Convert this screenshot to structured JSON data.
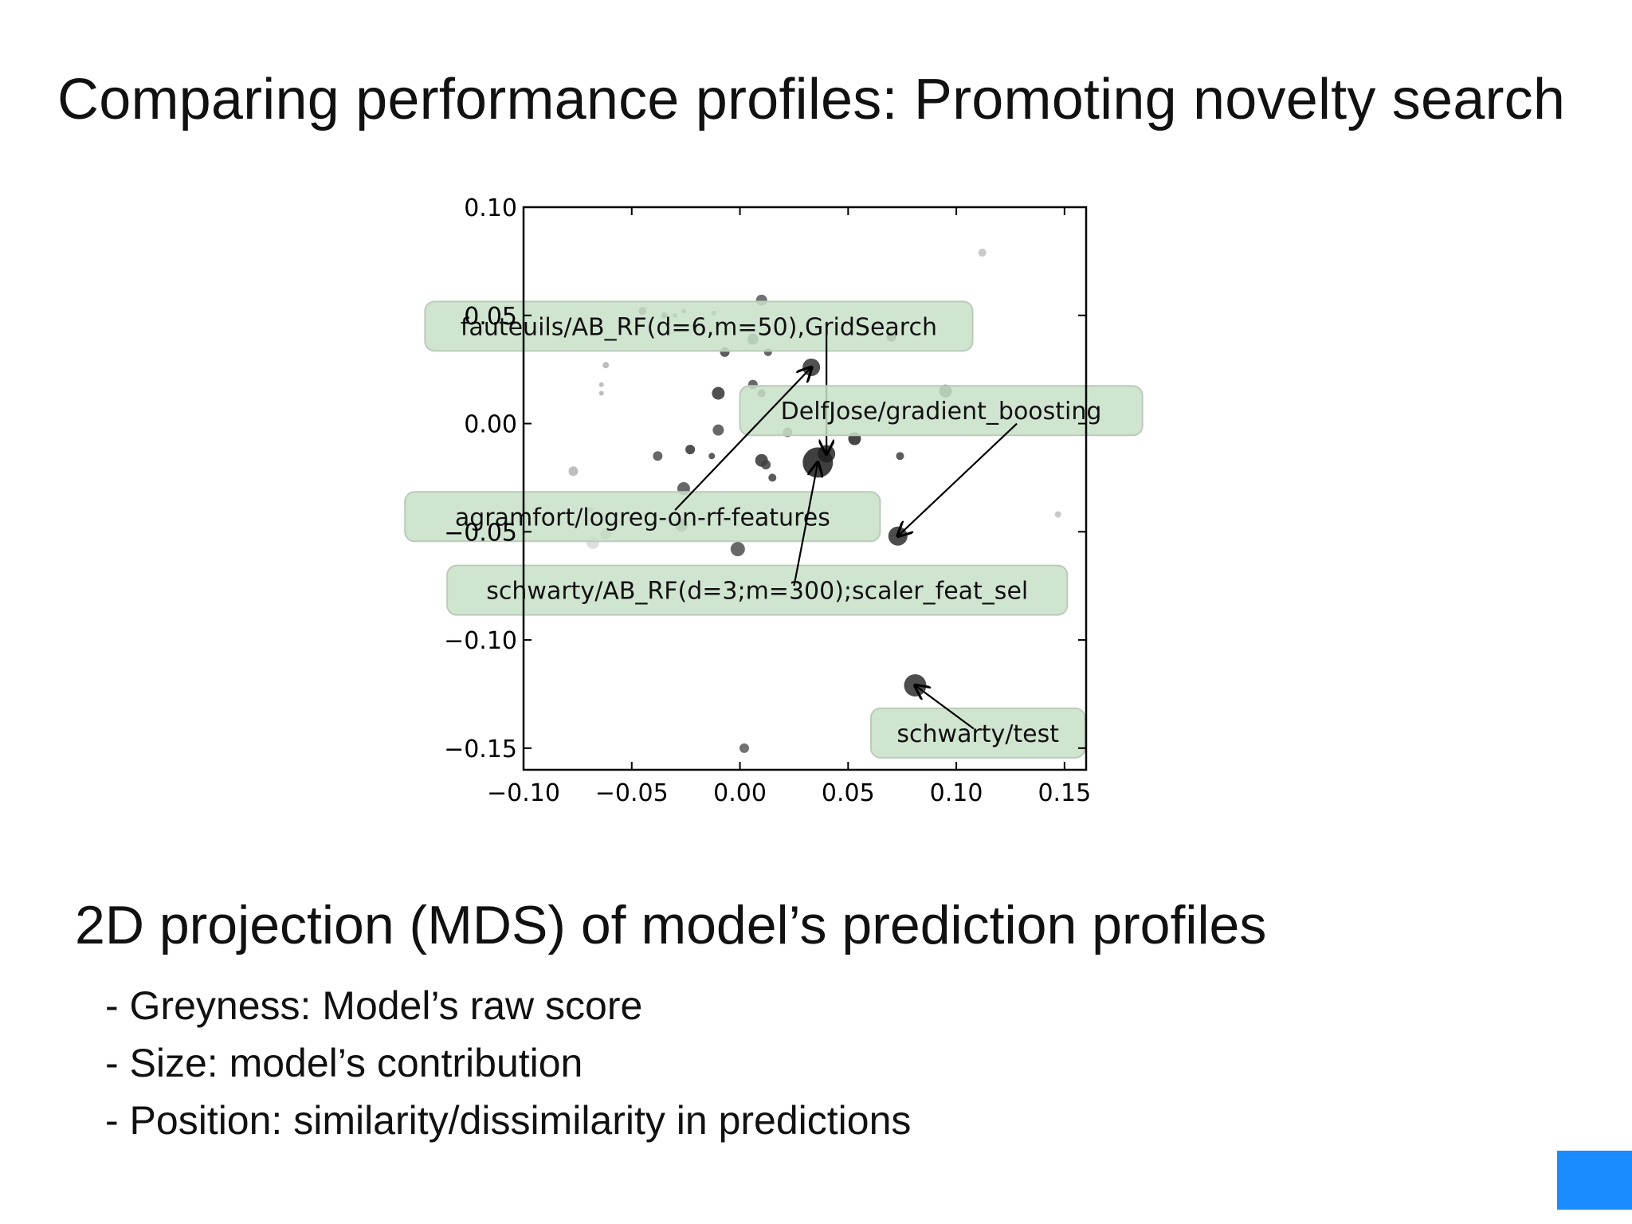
{
  "slide": {
    "title": "Comparing performance profiles: Promoting novelty search",
    "subtitle": "2D projection (MDS) of model’s prediction profiles",
    "bullets": [
      "- Greyness: Model’s raw score",
      "- Size: model’s contribution",
      "- Position: similarity/dissimilarity in predictions"
    ],
    "accent_color": "#1a8cff"
  },
  "chart_data": {
    "type": "scatter",
    "title": "",
    "xlabel": "",
    "ylabel": "",
    "xlim": [
      -0.1,
      0.16
    ],
    "ylim": [
      -0.16,
      0.1
    ],
    "xticks": [
      -0.1,
      -0.05,
      0.0,
      0.05,
      0.1,
      0.15
    ],
    "yticks": [
      -0.15,
      -0.1,
      -0.05,
      0.0,
      0.05,
      0.1
    ],
    "xtick_labels": [
      "−0.10",
      "−0.05",
      "0.00",
      "0.05",
      "0.10",
      "0.15"
    ],
    "ytick_labels": [
      "−0.15",
      "−0.10",
      "−0.05",
      "0.00",
      "0.05",
      "0.10"
    ],
    "grid": false,
    "encoding": {
      "greyness": "raw score",
      "size": "contribution"
    },
    "annotation_color": "#c8e0c8",
    "points": [
      {
        "x": 0.112,
        "y": 0.079,
        "size": 5,
        "grey": 0.75
      },
      {
        "x": 0.01,
        "y": 0.057,
        "size": 7,
        "grey": 0.35
      },
      {
        "x": -0.045,
        "y": 0.052,
        "size": 5,
        "grey": 0.35
      },
      {
        "x": -0.035,
        "y": 0.05,
        "size": 4,
        "grey": 0.35
      },
      {
        "x": -0.03,
        "y": 0.05,
        "size": 3,
        "grey": 0.45
      },
      {
        "x": -0.026,
        "y": 0.052,
        "size": 3,
        "grey": 0.4
      },
      {
        "x": -0.012,
        "y": 0.051,
        "size": 3,
        "grey": 0.4
      },
      {
        "x": 0.006,
        "y": 0.039,
        "size": 7,
        "grey": 0.3
      },
      {
        "x": 0.07,
        "y": 0.04,
        "size": 6,
        "grey": 0.25
      },
      {
        "x": -0.007,
        "y": 0.033,
        "size": 6,
        "grey": 0.25
      },
      {
        "x": 0.013,
        "y": 0.033,
        "size": 5,
        "grey": 0.3
      },
      {
        "x": 0.033,
        "y": 0.026,
        "size": 11,
        "grey": 0.2
      },
      {
        "x": -0.062,
        "y": 0.027,
        "size": 4,
        "grey": 0.7
      },
      {
        "x": -0.064,
        "y": 0.018,
        "size": 3,
        "grey": 0.7
      },
      {
        "x": -0.064,
        "y": 0.014,
        "size": 3,
        "grey": 0.7
      },
      {
        "x": -0.01,
        "y": 0.014,
        "size": 8,
        "grey": 0.2
      },
      {
        "x": 0.006,
        "y": 0.018,
        "size": 6,
        "grey": 0.3
      },
      {
        "x": 0.01,
        "y": 0.014,
        "size": 5,
        "grey": 0.25
      },
      {
        "x": 0.095,
        "y": 0.015,
        "size": 8,
        "grey": 0.2
      },
      {
        "x": -0.01,
        "y": -0.003,
        "size": 7,
        "grey": 0.3
      },
      {
        "x": 0.022,
        "y": -0.004,
        "size": 6,
        "grey": 0.3
      },
      {
        "x": 0.053,
        "y": -0.007,
        "size": 8,
        "grey": 0.15
      },
      {
        "x": -0.023,
        "y": -0.012,
        "size": 6,
        "grey": 0.2
      },
      {
        "x": -0.013,
        "y": -0.015,
        "size": 4,
        "grey": 0.25
      },
      {
        "x": -0.038,
        "y": -0.015,
        "size": 6,
        "grey": 0.3
      },
      {
        "x": 0.04,
        "y": -0.014,
        "size": 11,
        "grey": 0.15
      },
      {
        "x": 0.036,
        "y": -0.018,
        "size": 19,
        "grey": 0.12
      },
      {
        "x": 0.01,
        "y": -0.017,
        "size": 8,
        "grey": 0.2
      },
      {
        "x": 0.012,
        "y": -0.019,
        "size": 6,
        "grey": 0.25
      },
      {
        "x": 0.074,
        "y": -0.015,
        "size": 5,
        "grey": 0.25
      },
      {
        "x": -0.077,
        "y": -0.022,
        "size": 6,
        "grey": 0.7
      },
      {
        "x": 0.015,
        "y": -0.025,
        "size": 5,
        "grey": 0.25
      },
      {
        "x": -0.026,
        "y": -0.03,
        "size": 8,
        "grey": 0.3
      },
      {
        "x": -0.069,
        "y": -0.04,
        "size": 4,
        "grey": 0.7
      },
      {
        "x": -0.027,
        "y": -0.047,
        "size": 8,
        "grey": 0.45
      },
      {
        "x": -0.062,
        "y": -0.051,
        "size": 7,
        "grey": 0.7
      },
      {
        "x": -0.068,
        "y": -0.055,
        "size": 8,
        "grey": 0.85
      },
      {
        "x": 0.073,
        "y": -0.052,
        "size": 12,
        "grey": 0.18
      },
      {
        "x": -0.001,
        "y": -0.058,
        "size": 9,
        "grey": 0.3
      },
      {
        "x": 0.147,
        "y": -0.042,
        "size": 4,
        "grey": 0.75
      },
      {
        "x": 0.081,
        "y": -0.121,
        "size": 14,
        "grey": 0.18
      },
      {
        "x": 0.002,
        "y": -0.15,
        "size": 6,
        "grey": 0.35
      }
    ],
    "annotations": [
      {
        "text": "fauteuils/AB_RF(d=6,m=50),GridSearch",
        "box_x": -0.019,
        "box_y": 0.045,
        "target_x": 0.04,
        "target_y": -0.014,
        "anchor_x": 0.04,
        "anchor_y": 0.041
      },
      {
        "text": "DelfJose/gradient_boosting",
        "box_x": 0.093,
        "box_y": 0.006,
        "target_x": 0.073,
        "target_y": -0.052,
        "anchor_x": 0.128,
        "anchor_y": 0.0
      },
      {
        "text": "agramfort/logreg-on-rf-features",
        "box_x": -0.045,
        "box_y": -0.043,
        "target_x": 0.033,
        "target_y": 0.026,
        "anchor_x": -0.03,
        "anchor_y": -0.04
      },
      {
        "text": "schwarty/AB_RF(d=3;m=300);scaler_feat_sel",
        "box_x": 0.008,
        "box_y": -0.077,
        "target_x": 0.036,
        "target_y": -0.018,
        "anchor_x": 0.025,
        "anchor_y": -0.075
      },
      {
        "text": "schwarty/test",
        "box_x": 0.11,
        "box_y": -0.143,
        "target_x": 0.081,
        "target_y": -0.121,
        "anchor_x": 0.108,
        "anchor_y": -0.141
      }
    ]
  }
}
